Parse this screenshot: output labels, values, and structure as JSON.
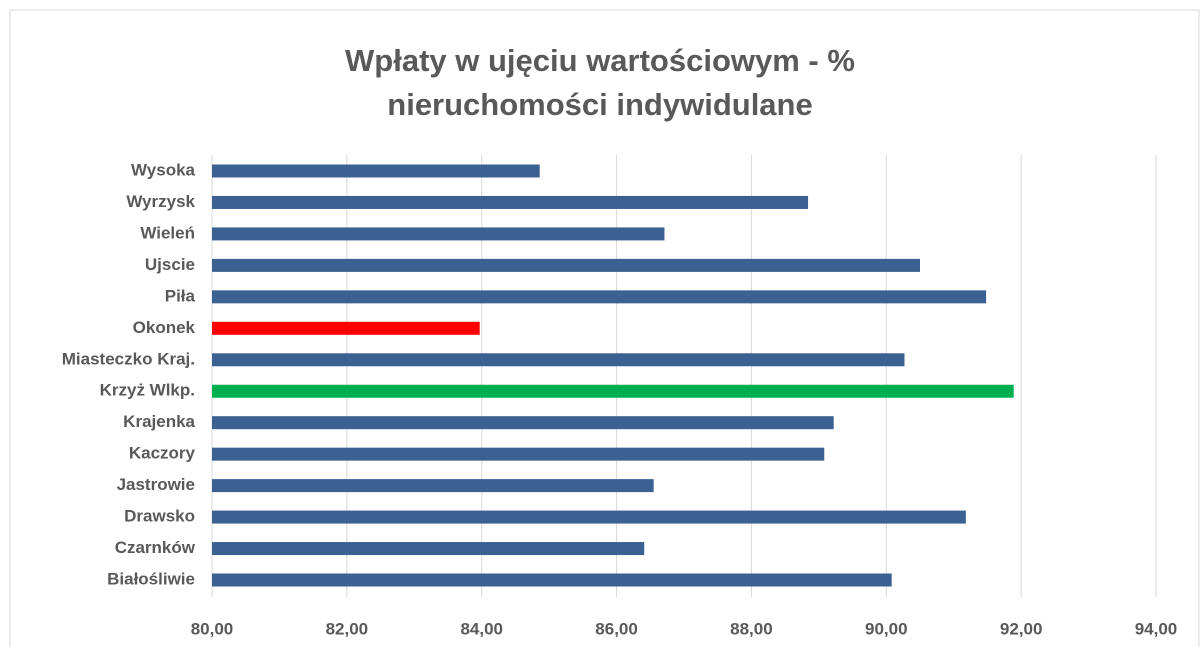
{
  "chart_data": {
    "type": "barh",
    "title": [
      "Wpłaty w ujęciu wartościowym - %",
      "nieruchomości indywidulane"
    ],
    "categories": [
      "Białośliwie",
      "Czarnków",
      "Drawsko",
      "Jastrowie",
      "Kaczory",
      "Krajenka",
      "Krzyż Wlkp.",
      "Miasteczko Kraj.",
      "Okonek",
      "Piła",
      "Ujscie",
      "Wieleń",
      "Wyrzysk",
      "Wysoka"
    ],
    "values": [
      90.08,
      86.41,
      91.18,
      86.55,
      89.08,
      89.22,
      91.89,
      90.27,
      83.97,
      91.48,
      90.5,
      86.71,
      88.84,
      84.86
    ],
    "colors": [
      "#3b6192",
      "#3b6192",
      "#3b6192",
      "#3b6192",
      "#3b6192",
      "#3b6192",
      "#00b050",
      "#3b6192",
      "#ff0000",
      "#3b6192",
      "#3b6192",
      "#3b6192",
      "#3b6192",
      "#3b6192"
    ],
    "xlim": [
      80,
      94
    ],
    "xticks": [
      {
        "value": 80,
        "label": "80,00"
      },
      {
        "value": 82,
        "label": "82,00"
      },
      {
        "value": 84,
        "label": "84,00"
      },
      {
        "value": 86,
        "label": "86,00"
      },
      {
        "value": 88,
        "label": "88,00"
      },
      {
        "value": 90,
        "label": "90,00"
      },
      {
        "value": 92,
        "label": "92,00"
      },
      {
        "value": 94,
        "label": "94,00"
      }
    ],
    "grid": true
  }
}
